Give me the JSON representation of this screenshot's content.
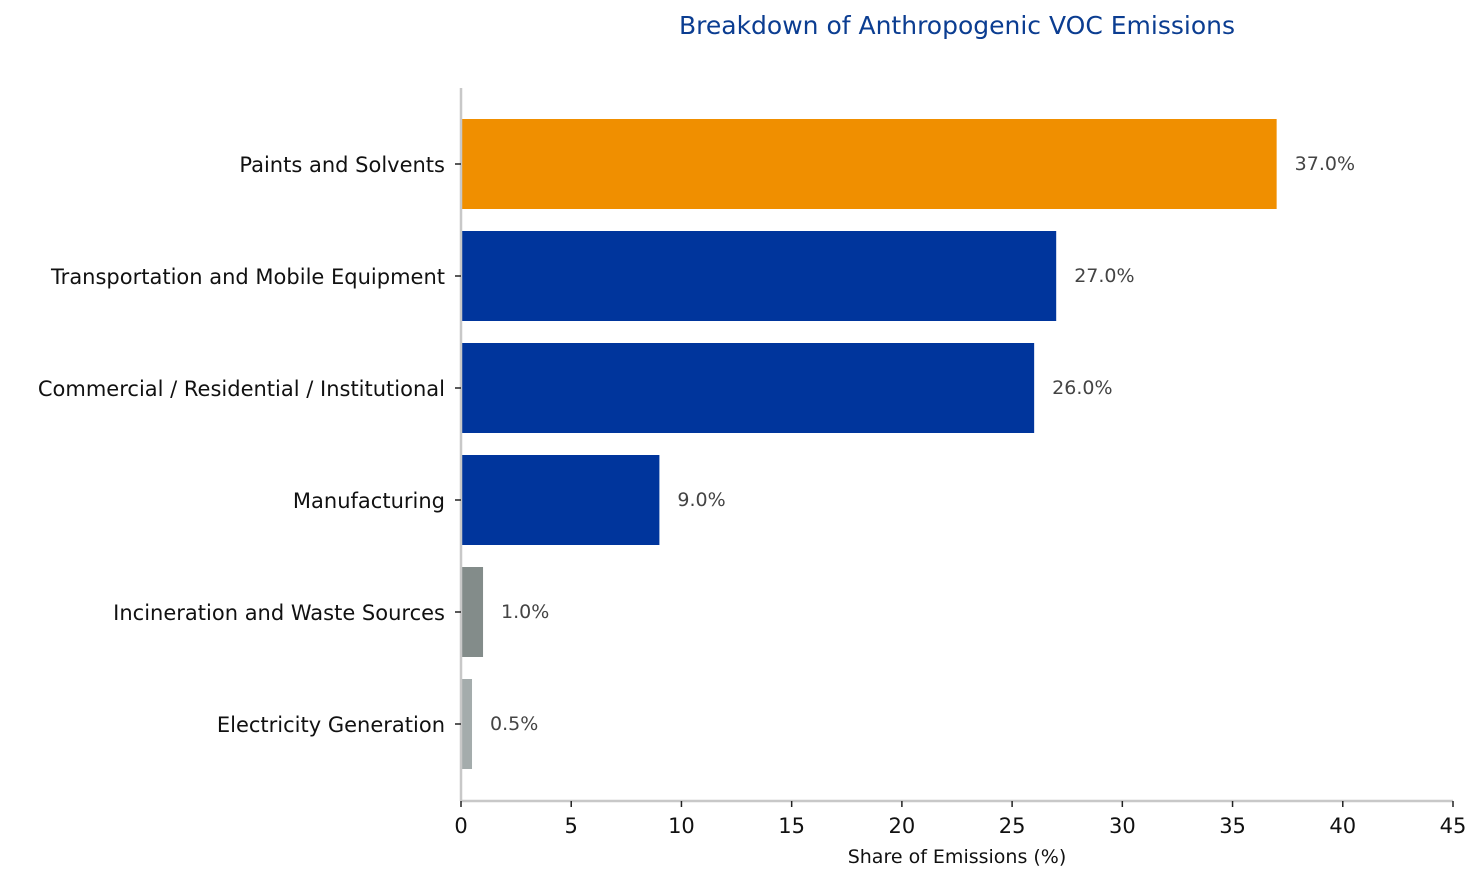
{
  "chart_data": {
    "type": "bar",
    "orientation": "horizontal",
    "title": "Breakdown of Anthropogenic VOC Emissions",
    "xlabel": "Share of Emissions (%)",
    "ylabel": "",
    "xlim": [
      0,
      45
    ],
    "xticks": [
      0,
      5,
      10,
      15,
      20,
      25,
      30,
      35,
      40,
      45
    ],
    "grid": false,
    "categories": [
      "Paints and Solvents",
      "Transportation and Mobile Equipment",
      "Commercial / Residential / Institutional",
      "Manufacturing",
      "Incineration and Waste Sources",
      "Electricity Generation"
    ],
    "values": [
      37.0,
      27.0,
      26.0,
      9.0,
      1.0,
      0.5
    ],
    "value_labels": [
      "37.0%",
      "27.0%",
      "26.0%",
      "9.0%",
      "1.0%",
      "0.5%"
    ],
    "bar_colors": [
      "#F08F00",
      "#00359C",
      "#00359C",
      "#00359C",
      "#838C8A",
      "#A4ACAC"
    ],
    "colors": {
      "title": "#0B3D91",
      "axis": "#C8C8C8",
      "text": "#111111",
      "data_label": "#444444"
    }
  }
}
